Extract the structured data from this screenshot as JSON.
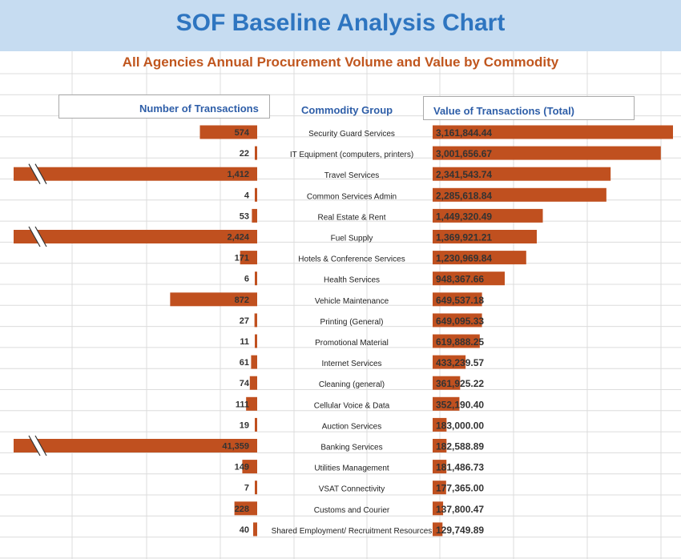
{
  "title": "SOF Baseline Analysis Chart",
  "subtitle": "All Agencies Annual Procurement Volume and Value by Commodity",
  "headers": {
    "left": "Number of Transactions",
    "center": "Commodity Group",
    "right": "Value  of Transactions  (Total)"
  },
  "colors": {
    "bar": "#c0501f",
    "title": "#2e75c0",
    "subtitle": "#c0561e",
    "banner": "#c6dcf1"
  },
  "chart_data": {
    "type": "bar",
    "categories": [
      "Security Guard Services",
      "IT Equipment (computers,  printers)",
      "Travel Services",
      "Common Services Admin",
      "Real Estate & Rent",
      "Fuel Supply",
      "Hotels & Conference Services",
      "Health Services",
      "Vehicle Maintenance",
      "Printing  (General)",
      "Promotional  Material",
      "Internet Services",
      "Cleaning (general)",
      "Cellular Voice & Data",
      "Auction Services",
      "Banking Services",
      "Utilities  Management",
      "VSAT Connectivity",
      "Customs and Courier",
      "Shared Employment/ Recruitment Resources"
    ],
    "series": [
      {
        "name": "Number of Transactions",
        "values": [
          574,
          22,
          1412,
          4,
          53,
          2424,
          171,
          6,
          872,
          27,
          11,
          61,
          74,
          111,
          19,
          41359,
          149,
          7,
          228,
          40
        ],
        "labels": [
          "574",
          "22",
          "1,412",
          "4",
          "53",
          "2,424",
          "171",
          "6",
          "872",
          "27",
          "11",
          "61",
          "74",
          "111",
          "19",
          "41,359",
          "149",
          "7",
          "228",
          "40"
        ],
        "broken": [
          false,
          false,
          true,
          false,
          false,
          true,
          false,
          false,
          false,
          false,
          false,
          false,
          false,
          false,
          false,
          true,
          false,
          false,
          false,
          false
        ]
      },
      {
        "name": "Value  of Transactions  (Total)",
        "values": [
          3161844.44,
          3001656.67,
          2341543.74,
          2285618.84,
          1449320.49,
          1369921.21,
          1230969.84,
          948367.66,
          649537.18,
          649095.33,
          619888.25,
          433239.57,
          361925.22,
          352190.4,
          183000.0,
          182588.89,
          181486.73,
          177365.0,
          137800.47,
          129749.89
        ],
        "labels": [
          "3,161,844.44",
          "3,001,656.67",
          "2,341,543.74",
          "2,285,618.84",
          "1,449,320.49",
          "1,369,921.21",
          "1,230,969.84",
          "948,367.66",
          "649,537.18",
          "649,095.33",
          "619,888.25",
          "433,239.57",
          "361,925.22",
          "352,190.40",
          "183,000.00",
          "182,588.89",
          "181,486.73",
          "177,365.00",
          "137,800.47",
          "129,749.89"
        ]
      }
    ]
  }
}
